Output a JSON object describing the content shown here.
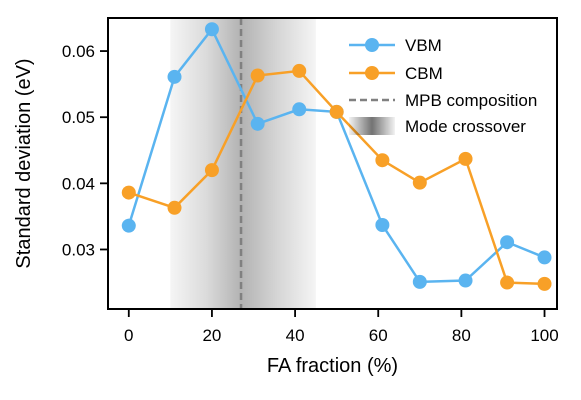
{
  "chart_data": {
    "type": "line",
    "xlabel": "FA fraction (%)",
    "ylabel": "Standard deviation (eV)",
    "xlim": [
      -5,
      103
    ],
    "ylim": [
      0.021,
      0.065
    ],
    "xticks": [
      0,
      20,
      40,
      60,
      80,
      100
    ],
    "yticks": [
      0.03,
      0.04,
      0.05,
      0.06
    ],
    "ytick_labels": [
      "0.03",
      "0.04",
      "0.05",
      "0.06"
    ],
    "grid": false,
    "legend_position": "top-right",
    "series": [
      {
        "name": "VBM",
        "color": "#5ab4f0",
        "x": [
          0,
          11,
          20,
          31,
          41,
          50,
          61,
          70,
          81,
          91,
          100
        ],
        "y": [
          0.0336,
          0.0561,
          0.0633,
          0.049,
          0.0512,
          0.0508,
          0.0337,
          0.0251,
          0.0253,
          0.0311,
          0.0288
        ]
      },
      {
        "name": "CBM",
        "color": "#f8a027",
        "x": [
          0,
          11,
          20,
          31,
          41,
          50,
          61,
          70,
          81,
          91,
          100
        ],
        "y": [
          0.0386,
          0.0363,
          0.042,
          0.0563,
          0.057,
          0.0508,
          0.0435,
          0.0401,
          0.0437,
          0.025,
          0.0248
        ]
      }
    ],
    "reference_line": {
      "name": "MPB composition",
      "x": 27,
      "color": "#808080",
      "style": "dashed"
    },
    "shaded_band": {
      "name": "Mode crossover",
      "x_start": 10,
      "x_end": 45,
      "peak_x": 27,
      "color": "#000000"
    }
  }
}
